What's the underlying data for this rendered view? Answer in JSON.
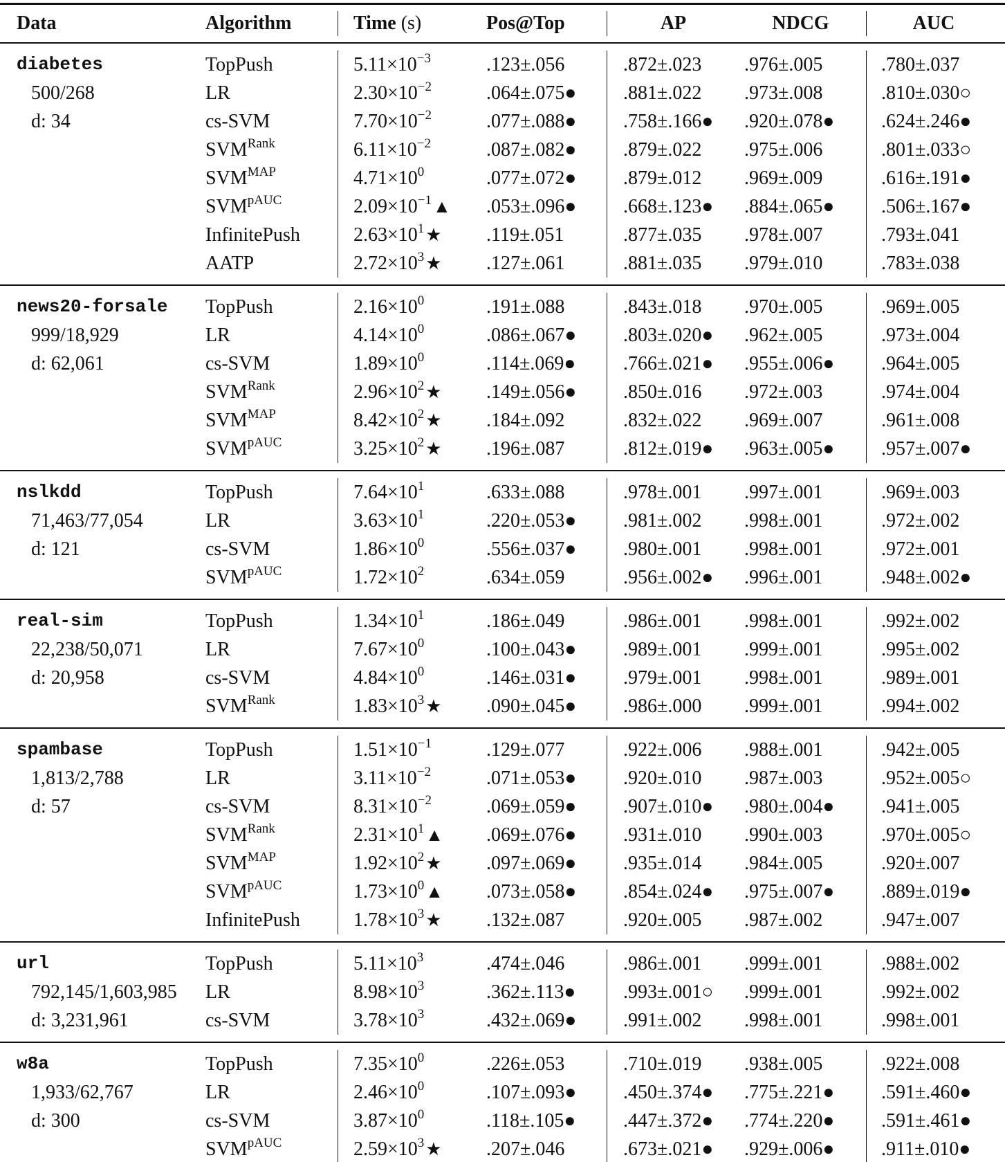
{
  "header": {
    "data": "Data",
    "algorithm": "Algorithm",
    "time": "Time",
    "time_unit": "(s)",
    "pos": "Pos@Top",
    "ap": "AP",
    "ndcg": "NDCG",
    "auc": "AUC"
  },
  "groups": [
    {
      "name": "diabetes",
      "stats": "500/268",
      "dim": "d: 34",
      "rows": [
        {
          "alg": "TopPush",
          "sup": "",
          "time": "5.11×10",
          "exp": "−3",
          "mark": "",
          "pos": ".123±.056",
          "ap": ".872±.023",
          "ndcg": ".976±.005",
          "auc": ".780±.037"
        },
        {
          "alg": "LR",
          "sup": "",
          "time": "2.30×10",
          "exp": "−2",
          "mark": "",
          "pos": ".064±.075●",
          "ap": ".881±.022",
          "ndcg": ".973±.008",
          "auc": ".810±.030○"
        },
        {
          "alg": "cs-SVM",
          "sup": "",
          "time": "7.70×10",
          "exp": "−2",
          "mark": "",
          "pos": ".077±.088●",
          "ap": ".758±.166●",
          "ndcg": ".920±.078●",
          "auc": ".624±.246●"
        },
        {
          "alg": "SVM",
          "sup": "Rank",
          "time": "6.11×10",
          "exp": "−2",
          "mark": "",
          "pos": ".087±.082●",
          "ap": ".879±.022",
          "ndcg": ".975±.006",
          "auc": ".801±.033○"
        },
        {
          "alg": "SVM",
          "sup": "MAP",
          "time": "4.71×10",
          "exp": "0",
          "mark": "",
          "pos": ".077±.072●",
          "ap": ".879±.012",
          "ndcg": ".969±.009",
          "auc": ".616±.191●"
        },
        {
          "alg": "SVM",
          "sup": "pAUC",
          "time": "2.09×10",
          "exp": "−1",
          "mark": "▲",
          "pos": ".053±.096●",
          "ap": ".668±.123●",
          "ndcg": ".884±.065●",
          "auc": ".506±.167●"
        },
        {
          "alg": "InfinitePush",
          "sup": "",
          "time": "2.63×10",
          "exp": "1",
          "mark": "★",
          "pos": ".119±.051",
          "ap": ".877±.035",
          "ndcg": ".978±.007",
          "auc": ".793±.041"
        },
        {
          "alg": "AATP",
          "sup": "",
          "time": "2.72×10",
          "exp": "3",
          "mark": "★",
          "pos": ".127±.061",
          "ap": ".881±.035",
          "ndcg": ".979±.010",
          "auc": ".783±.038"
        }
      ]
    },
    {
      "name": "news20-forsale",
      "stats": "999/18,929",
      "dim": "d: 62,061",
      "rows": [
        {
          "alg": "TopPush",
          "sup": "",
          "time": "2.16×10",
          "exp": "0",
          "mark": "",
          "pos": ".191±.088",
          "ap": ".843±.018",
          "ndcg": ".970±.005",
          "auc": ".969±.005"
        },
        {
          "alg": "LR",
          "sup": "",
          "time": "4.14×10",
          "exp": "0",
          "mark": "",
          "pos": ".086±.067●",
          "ap": ".803±.020●",
          "ndcg": ".962±.005",
          "auc": ".973±.004"
        },
        {
          "alg": "cs-SVM",
          "sup": "",
          "time": "1.89×10",
          "exp": "0",
          "mark": "",
          "pos": ".114±.069●",
          "ap": ".766±.021●",
          "ndcg": ".955±.006●",
          "auc": ".964±.005"
        },
        {
          "alg": "SVM",
          "sup": "Rank",
          "time": "2.96×10",
          "exp": "2",
          "mark": "★",
          "pos": ".149±.056●",
          "ap": ".850±.016",
          "ndcg": ".972±.003",
          "auc": ".974±.004"
        },
        {
          "alg": "SVM",
          "sup": "MAP",
          "time": "8.42×10",
          "exp": "2",
          "mark": "★",
          "pos": ".184±.092",
          "ap": ".832±.022",
          "ndcg": ".969±.007",
          "auc": ".961±.008"
        },
        {
          "alg": "SVM",
          "sup": "pAUC",
          "time": "3.25×10",
          "exp": "2",
          "mark": "★",
          "pos": ".196±.087",
          "ap": ".812±.019●",
          "ndcg": ".963±.005●",
          "auc": ".957±.007●"
        }
      ]
    },
    {
      "name": "nslkdd",
      "stats": "71,463/77,054",
      "dim": "d: 121",
      "rows": [
        {
          "alg": "TopPush",
          "sup": "",
          "time": "7.64×10",
          "exp": "1",
          "mark": "",
          "pos": ".633±.088",
          "ap": ".978±.001",
          "ndcg": ".997±.001",
          "auc": ".969±.003"
        },
        {
          "alg": "LR",
          "sup": "",
          "time": "3.63×10",
          "exp": "1",
          "mark": "",
          "pos": ".220±.053●",
          "ap": ".981±.002",
          "ndcg": ".998±.001",
          "auc": ".972±.002"
        },
        {
          "alg": "cs-SVM",
          "sup": "",
          "time": "1.86×10",
          "exp": "0",
          "mark": "",
          "pos": ".556±.037●",
          "ap": ".980±.001",
          "ndcg": ".998±.001",
          "auc": ".972±.001"
        },
        {
          "alg": "SVM",
          "sup": "pAUC",
          "time": "1.72×10",
          "exp": "2",
          "mark": "",
          "pos": ".634±.059",
          "ap": ".956±.002●",
          "ndcg": ".996±.001",
          "auc": ".948±.002●"
        }
      ]
    },
    {
      "name": "real-sim",
      "stats": "22,238/50,071",
      "dim": "d: 20,958",
      "rows": [
        {
          "alg": "TopPush",
          "sup": "",
          "time": "1.34×10",
          "exp": "1",
          "mark": "",
          "pos": ".186±.049",
          "ap": ".986±.001",
          "ndcg": ".998±.001",
          "auc": ".992±.002"
        },
        {
          "alg": "LR",
          "sup": "",
          "time": "7.67×10",
          "exp": "0",
          "mark": "",
          "pos": ".100±.043●",
          "ap": ".989±.001",
          "ndcg": ".999±.001",
          "auc": ".995±.002"
        },
        {
          "alg": "cs-SVM",
          "sup": "",
          "time": "4.84×10",
          "exp": "0",
          "mark": "",
          "pos": ".146±.031●",
          "ap": ".979±.001",
          "ndcg": ".998±.001",
          "auc": ".989±.001"
        },
        {
          "alg": "SVM",
          "sup": "Rank",
          "time": "1.83×10",
          "exp": "3",
          "mark": "★",
          "pos": ".090±.045●",
          "ap": ".986±.000",
          "ndcg": ".999±.001",
          "auc": ".994±.002"
        }
      ]
    },
    {
      "name": "spambase",
      "stats": "1,813/2,788",
      "dim": "d: 57",
      "rows": [
        {
          "alg": "TopPush",
          "sup": "",
          "time": "1.51×10",
          "exp": "−1",
          "mark": "",
          "pos": ".129±.077",
          "ap": ".922±.006",
          "ndcg": ".988±.001",
          "auc": ".942±.005"
        },
        {
          "alg": "LR",
          "sup": "",
          "time": "3.11×10",
          "exp": "−2",
          "mark": "",
          "pos": ".071±.053●",
          "ap": ".920±.010",
          "ndcg": ".987±.003",
          "auc": ".952±.005○"
        },
        {
          "alg": "cs-SVM",
          "sup": "",
          "time": "8.31×10",
          "exp": "−2",
          "mark": "",
          "pos": ".069±.059●",
          "ap": ".907±.010●",
          "ndcg": ".980±.004●",
          "auc": ".941±.005"
        },
        {
          "alg": "SVM",
          "sup": "Rank",
          "time": "2.31×10",
          "exp": "1",
          "mark": "▲",
          "pos": ".069±.076●",
          "ap": ".931±.010",
          "ndcg": ".990±.003",
          "auc": ".970±.005○"
        },
        {
          "alg": "SVM",
          "sup": "MAP",
          "time": "1.92×10",
          "exp": "2",
          "mark": "★",
          "pos": ".097±.069●",
          "ap": ".935±.014",
          "ndcg": ".984±.005",
          "auc": ".920±.007"
        },
        {
          "alg": "SVM",
          "sup": "pAUC",
          "time": "1.73×10",
          "exp": "0",
          "mark": "▲",
          "pos": ".073±.058●",
          "ap": ".854±.024●",
          "ndcg": ".975±.007●",
          "auc": ".889±.019●"
        },
        {
          "alg": "InfinitePush",
          "sup": "",
          "time": "1.78×10",
          "exp": "3",
          "mark": "★",
          "pos": ".132±.087",
          "ap": ".920±.005",
          "ndcg": ".987±.002",
          "auc": ".947±.007"
        }
      ]
    },
    {
      "name": "url",
      "stats": "792,145/1,603,985",
      "dim": "d: 3,231,961",
      "rows": [
        {
          "alg": "TopPush",
          "sup": "",
          "time": "5.11×10",
          "exp": "3",
          "mark": "",
          "pos": ".474±.046",
          "ap": ".986±.001",
          "ndcg": ".999±.001",
          "auc": ".988±.002"
        },
        {
          "alg": "LR",
          "sup": "",
          "time": "8.98×10",
          "exp": "3",
          "mark": "",
          "pos": ".362±.113●",
          "ap": ".993±.001○",
          "ndcg": ".999±.001",
          "auc": ".992±.002"
        },
        {
          "alg": "cs-SVM",
          "sup": "",
          "time": "3.78×10",
          "exp": "3",
          "mark": "",
          "pos": ".432±.069●",
          "ap": ".991±.002",
          "ndcg": ".998±.001",
          "auc": ".998±.001"
        }
      ]
    },
    {
      "name": "w8a",
      "stats": "1,933/62,767",
      "dim": "d: 300",
      "rows": [
        {
          "alg": "TopPush",
          "sup": "",
          "time": "7.35×10",
          "exp": "0",
          "mark": "",
          "pos": ".226±.053",
          "ap": ".710±.019",
          "ndcg": ".938±.005",
          "auc": ".922±.008"
        },
        {
          "alg": "LR",
          "sup": "",
          "time": "2.46×10",
          "exp": "0",
          "mark": "",
          "pos": ".107±.093●",
          "ap": ".450±.374●",
          "ndcg": ".775±.221●",
          "auc": ".591±.460●"
        },
        {
          "alg": "cs-SVM",
          "sup": "",
          "time": "3.87×10",
          "exp": "0",
          "mark": "",
          "pos": ".118±.105●",
          "ap": ".447±.372●",
          "ndcg": ".774±.220●",
          "auc": ".591±.461●"
        },
        {
          "alg": "SVM",
          "sup": "pAUC",
          "time": "2.59×10",
          "exp": "3",
          "mark": "★",
          "pos": ".207±.046",
          "ap": ".673±.021●",
          "ndcg": ".929±.006●",
          "auc": ".911±.010●"
        }
      ]
    }
  ]
}
